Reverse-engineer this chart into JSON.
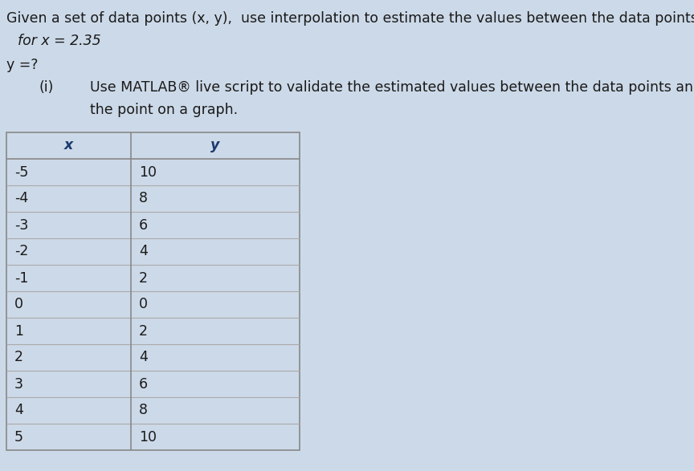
{
  "background_color": "#ccd9e8",
  "title_line1": "Given a set of data points (x, y),  use interpolation to estimate the values between the data points.",
  "line2": "for x = 2.35",
  "line3": "y =?",
  "line4_prefix": "(i)",
  "line4_text": "Use MATLAB® live script to validate the estimated values between the data points and plot",
  "line5_text": "the point on a graph.",
  "table_header_x": "x",
  "table_header_y": "y",
  "x_values": [
    -5,
    -4,
    -3,
    -2,
    -1,
    0,
    1,
    2,
    3,
    4,
    5
  ],
  "y_values": [
    10,
    8,
    6,
    4,
    2,
    0,
    2,
    4,
    6,
    8,
    10
  ],
  "font_size_body": 12.5,
  "font_size_table": 12.5,
  "text_color": "#1a1a1a",
  "header_color": "#1a3a6e",
  "table_border_color": "#888888",
  "table_line_color": "#aaaaaa"
}
